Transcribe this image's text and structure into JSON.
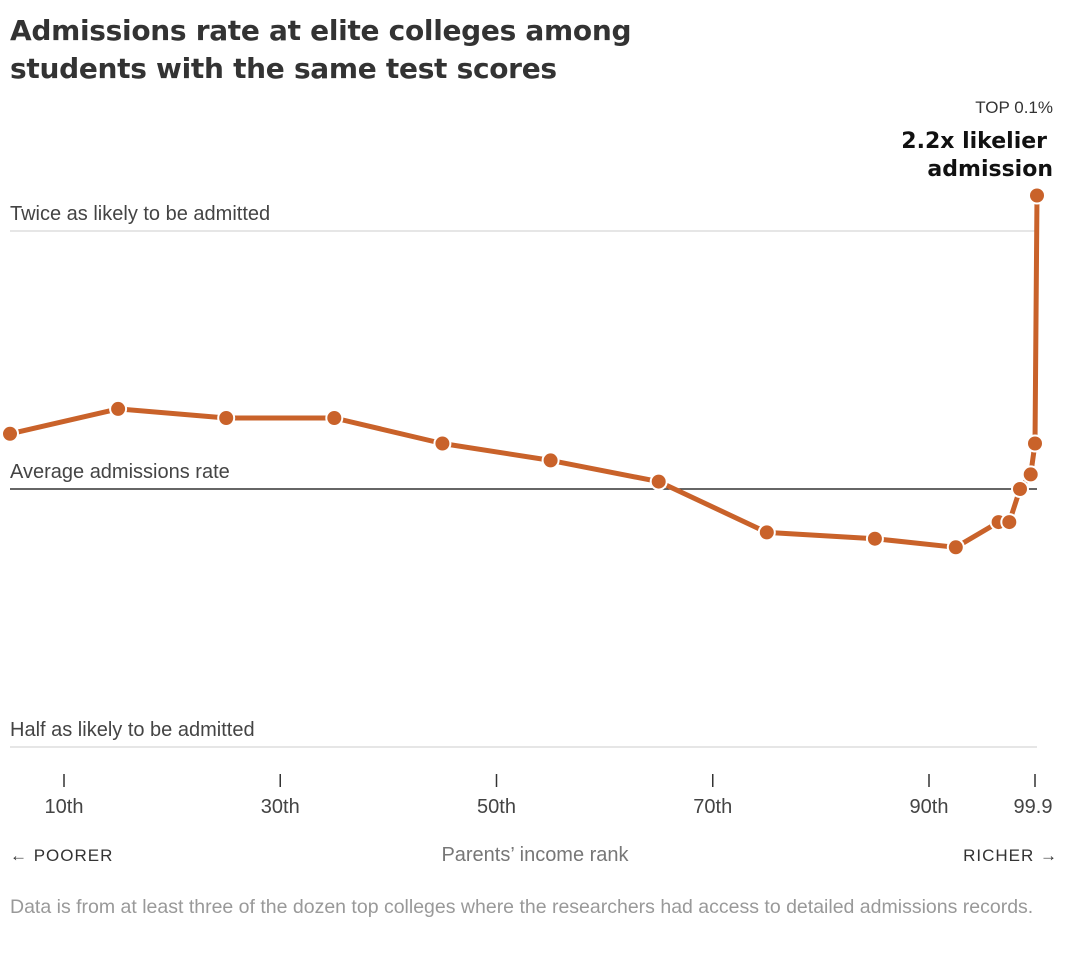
{
  "title": "Admissions rate at elite colleges among students with the same test scores",
  "annotation": {
    "kicker": "TOP 0.1%",
    "headline_line1": "2.2x likelier",
    "headline_line2": "admission"
  },
  "reference_lines": {
    "twice": "Twice as likely to be admitted",
    "average": "Average admissions rate",
    "half": "Half as likely to be admitted"
  },
  "axis": {
    "xlabel": "Parents’ income rank",
    "left_label": "← POORER",
    "right_label": "RICHER →"
  },
  "note": "Data is from at least three of the dozen top colleges where the researchers had access to detailed admissions records.",
  "colors": {
    "line": "#c9622a",
    "average_line": "#333333",
    "grid": "#dddddd"
  },
  "chart_data": {
    "type": "line",
    "x_axis": {
      "label": "Parents’ income rank",
      "ticks": [
        {
          "value": 10,
          "label": "10th"
        },
        {
          "value": 30,
          "label": "30th"
        },
        {
          "value": 50,
          "label": "50th"
        },
        {
          "value": 70,
          "label": "70th"
        },
        {
          "value": 90,
          "label": "90th"
        },
        {
          "value": 99.9,
          "label": "99.9"
        }
      ]
    },
    "y_axis": {
      "scale": "log",
      "range": [
        0.5,
        2.0
      ],
      "reference_values": [
        0.5,
        1.0,
        2.0
      ]
    },
    "series": [
      {
        "points": [
          {
            "x": 5,
            "y": 1.16
          },
          {
            "x": 15,
            "y": 1.24
          },
          {
            "x": 25,
            "y": 1.21
          },
          {
            "x": 35,
            "y": 1.21
          },
          {
            "x": 45,
            "y": 1.13
          },
          {
            "x": 55,
            "y": 1.08
          },
          {
            "x": 65,
            "y": 1.02
          },
          {
            "x": 75,
            "y": 0.89
          },
          {
            "x": 85,
            "y": 0.875
          },
          {
            "x": 92.5,
            "y": 0.855
          },
          {
            "x": 96.5,
            "y": 0.915
          },
          {
            "x": 97.5,
            "y": 0.915
          },
          {
            "x": 98.5,
            "y": 1.0
          },
          {
            "x": 99.5,
            "y": 1.04
          },
          {
            "x": 99.9,
            "y": 1.13
          },
          {
            "x": 99.95,
            "y": 2.2
          }
        ]
      }
    ]
  }
}
